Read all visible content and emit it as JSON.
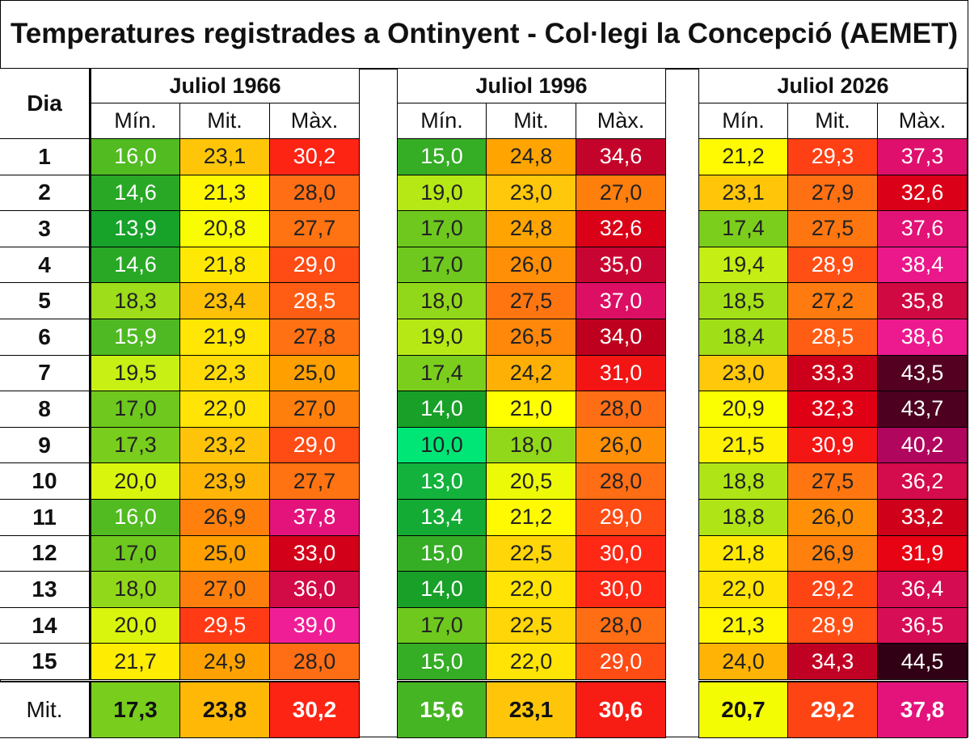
{
  "title": "Temperatures registrades a Ontinyent - Col·legi la Concepció (AEMET)",
  "chart_data": {
    "type": "table",
    "day_header": "Dia",
    "column_labels": [
      "Mín.",
      "Mit.",
      "Màx."
    ],
    "avg_label": "Mit.",
    "days": [
      "1",
      "2",
      "3",
      "4",
      "5",
      "6",
      "7",
      "8",
      "9",
      "10",
      "11",
      "12",
      "13",
      "14",
      "15"
    ],
    "groups": [
      {
        "name": "Juliol 1966",
        "min": [
          "16,0",
          "14,6",
          "13,9",
          "14,6",
          "18,3",
          "15,9",
          "19,5",
          "17,0",
          "17,3",
          "20,0",
          "16,0",
          "17,0",
          "18,0",
          "20,0",
          "21,7"
        ],
        "mit": [
          "23,1",
          "21,3",
          "20,8",
          "21,8",
          "23,4",
          "21,9",
          "22,3",
          "22,0",
          "23,2",
          "23,9",
          "26,9",
          "25,0",
          "27,0",
          "29,5",
          "24,9"
        ],
        "max": [
          "30,2",
          "28,0",
          "27,7",
          "29,0",
          "28,5",
          "27,8",
          "25,0",
          "27,0",
          "29,0",
          "27,7",
          "37,8",
          "33,0",
          "36,0",
          "39,0",
          "28,0"
        ],
        "avg": [
          "17,3",
          "23,8",
          "30,2"
        ]
      },
      {
        "name": "Juliol 1996",
        "min": [
          "15,0",
          "19,0",
          "17,0",
          "17,0",
          "18,0",
          "19,0",
          "17,4",
          "14,0",
          "10,0",
          "13,0",
          "13,4",
          "15,0",
          "14,0",
          "17,0",
          "15,0"
        ],
        "mit": [
          "24,8",
          "23,0",
          "24,8",
          "26,0",
          "27,5",
          "26,5",
          "24,2",
          "21,0",
          "18,0",
          "20,5",
          "21,2",
          "22,5",
          "22,0",
          "22,5",
          "22,0"
        ],
        "max": [
          "34,6",
          "27,0",
          "32,6",
          "35,0",
          "37,0",
          "34,0",
          "31,0",
          "28,0",
          "26,0",
          "28,0",
          "29,0",
          "30,0",
          "30,0",
          "28,0",
          "29,0"
        ],
        "avg": [
          "15,6",
          "23,1",
          "30,6"
        ]
      },
      {
        "name": "Juliol 2026",
        "min": [
          "21,2",
          "23,1",
          "17,4",
          "19,4",
          "18,5",
          "18,4",
          "23,0",
          "20,9",
          "21,5",
          "18,8",
          "18,8",
          "21,8",
          "22,0",
          "21,3",
          "24,0"
        ],
        "mit": [
          "29,3",
          "27,9",
          "27,5",
          "28,9",
          "27,2",
          "28,5",
          "33,3",
          "32,3",
          "30,9",
          "27,5",
          "26,0",
          "26,9",
          "29,2",
          "28,9",
          "34,3"
        ],
        "max": [
          "37,3",
          "32,6",
          "37,6",
          "38,4",
          "35,8",
          "38,6",
          "43,5",
          "43,7",
          "40,2",
          "36,2",
          "33,2",
          "31,9",
          "36,4",
          "36,5",
          "44,5"
        ],
        "avg": [
          "20,7",
          "29,2",
          "37,8"
        ]
      }
    ]
  }
}
